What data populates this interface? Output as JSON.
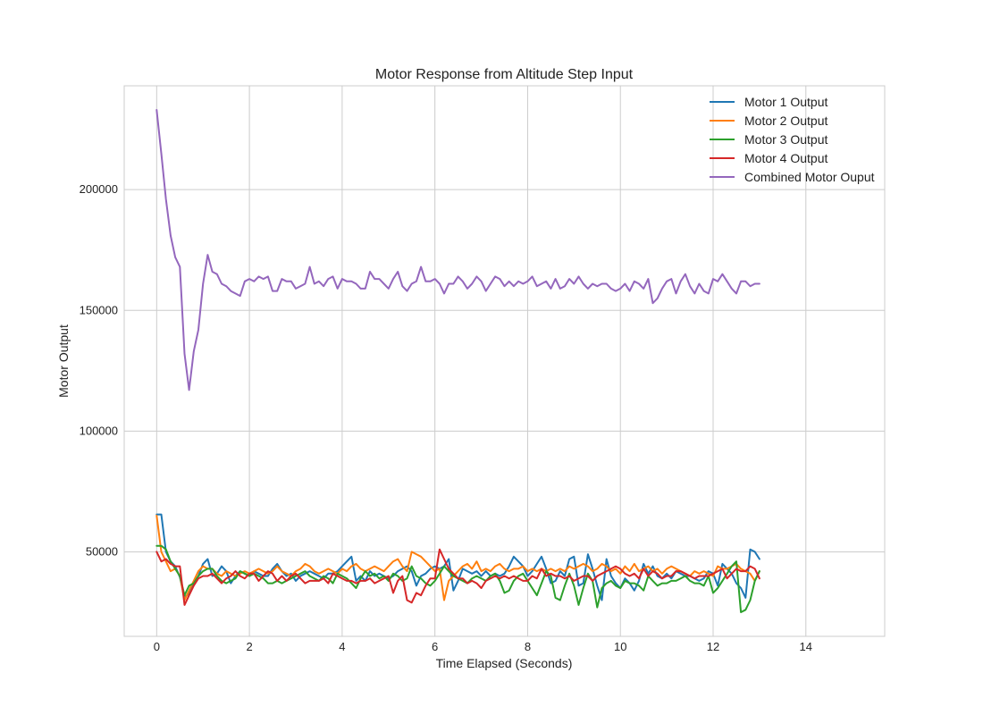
{
  "chart_data": {
    "type": "line",
    "title": "Motor Response from Altitude Step Input",
    "xlabel": "Time Elapsed (Seconds)",
    "ylabel": "Motor Output",
    "xlim": [
      -0.7,
      15.7
    ],
    "ylim": [
      15000,
      243000
    ],
    "xticks": [
      0,
      2,
      4,
      6,
      8,
      10,
      12,
      14
    ],
    "yticks": [
      50000,
      100000,
      150000,
      200000
    ],
    "grid": true,
    "legend_position": "top-right",
    "x_start": 0,
    "x_step": 0.1,
    "series": [
      {
        "name": "Motor 1 Output",
        "color": "#1f77b4",
        "values": [
          65500,
          65500,
          50000,
          46000,
          44000,
          39500,
          31000,
          33000,
          37000,
          40000,
          45000,
          47000,
          40000,
          41000,
          44000,
          42000,
          37000,
          40000,
          42000,
          41000,
          40000,
          42000,
          41000,
          40000,
          40000,
          43000,
          45000,
          42000,
          40000,
          41000,
          38000,
          40000,
          41000,
          42000,
          41000,
          40000,
          39000,
          41000,
          41000,
          42000,
          44000,
          46000,
          48000,
          38000,
          40000,
          38000,
          42000,
          40000,
          41000,
          40000,
          39000,
          40000,
          42000,
          43000,
          44000,
          42000,
          36000,
          40000,
          41000,
          43000,
          44000,
          43000,
          44000,
          47000,
          34000,
          38000,
          43000,
          42000,
          41000,
          42000,
          40000,
          42000,
          40000,
          41000,
          40000,
          41000,
          44000,
          48000,
          46000,
          44000,
          40000,
          42000,
          45000,
          48000,
          43000,
          37000,
          38000,
          42000,
          40000,
          47000,
          48000,
          36000,
          37000,
          49000,
          43000,
          36000,
          30000,
          47000,
          40000,
          37000,
          35000,
          39000,
          37000,
          34000,
          38000,
          45000,
          41000,
          44000,
          40000,
          39000,
          41000,
          39000,
          42000,
          41000,
          40000,
          40000,
          39000,
          38000,
          39000,
          42000,
          41000,
          36000,
          45000,
          43000,
          41000,
          37000,
          35000,
          31000,
          51000,
          50000,
          47000
        ]
      },
      {
        "name": "Motor 2 Output",
        "color": "#ff7f0e",
        "values": [
          65000,
          50000,
          46000,
          42000,
          43000,
          40000,
          30000,
          34000,
          38000,
          42000,
          44000,
          43000,
          43000,
          41000,
          40000,
          42000,
          41000,
          40000,
          41000,
          42000,
          41000,
          42000,
          43000,
          42000,
          41000,
          42000,
          44000,
          42000,
          41000,
          40000,
          42000,
          43000,
          45000,
          44000,
          42000,
          41000,
          42000,
          43000,
          42000,
          41000,
          43000,
          42000,
          44000,
          45000,
          43000,
          42000,
          43000,
          44000,
          43000,
          42000,
          44000,
          46000,
          47000,
          44000,
          42000,
          50000,
          49000,
          48000,
          46000,
          44000,
          42000,
          43000,
          30000,
          38000,
          40000,
          42000,
          44000,
          45000,
          43000,
          46000,
          42000,
          43000,
          42000,
          44000,
          45000,
          43000,
          42000,
          43000,
          43000,
          44000,
          42000,
          43000,
          42000,
          43000,
          42000,
          43000,
          42000,
          43000,
          42000,
          44000,
          43000,
          44000,
          45000,
          44000,
          42000,
          43000,
          45000,
          44000,
          42000,
          43000,
          41000,
          44000,
          42000,
          45000,
          42000,
          43000,
          44000,
          42000,
          43000,
          41000,
          43000,
          44000,
          43000,
          42000,
          41000,
          40000,
          42000,
          41000,
          42000,
          41000,
          40000,
          44000,
          43000,
          43000,
          44000,
          45000,
          43000,
          42000,
          41000,
          38000,
          42000
        ]
      },
      {
        "name": "Motor 3 Output",
        "color": "#2ca02c",
        "values": [
          52500,
          52500,
          51000,
          46000,
          43000,
          40000,
          32000,
          36000,
          37000,
          40000,
          42000,
          43000,
          43000,
          40000,
          38000,
          37000,
          38000,
          39000,
          42000,
          41000,
          40000,
          41000,
          40000,
          39000,
          37000,
          37000,
          38000,
          37000,
          38000,
          39000,
          40000,
          41000,
          42000,
          40000,
          39000,
          38000,
          40000,
          39000,
          37000,
          41000,
          40000,
          39000,
          37000,
          35000,
          39000,
          42000,
          40000,
          41000,
          39000,
          40000,
          38000,
          41000,
          40000,
          38000,
          39000,
          44000,
          40000,
          39000,
          37000,
          36000,
          38000,
          41000,
          44000,
          42000,
          40000,
          39000,
          38000,
          37000,
          39000,
          40000,
          39000,
          38000,
          40000,
          41000,
          38000,
          33000,
          34000,
          38000,
          40000,
          41000,
          38000,
          35000,
          32000,
          37000,
          42000,
          40000,
          31000,
          30000,
          36000,
          41000,
          36000,
          28000,
          35000,
          41000,
          38000,
          27000,
          35000,
          37000,
          38000,
          36000,
          35000,
          38000,
          37000,
          37000,
          36000,
          34000,
          40000,
          38000,
          36000,
          37000,
          37000,
          38000,
          38000,
          39000,
          40000,
          38000,
          37000,
          37000,
          36000,
          40000,
          33000,
          35000,
          38000,
          41000,
          44000,
          46000,
          25000,
          26000,
          30000,
          38000,
          42000
        ]
      },
      {
        "name": "Motor 4 Output",
        "color": "#d62728",
        "values": [
          50000,
          46000,
          47000,
          45000,
          44000,
          44000,
          28000,
          32000,
          36000,
          39000,
          40000,
          40000,
          41000,
          39000,
          37000,
          39000,
          40000,
          42000,
          40000,
          39000,
          41000,
          41000,
          38000,
          40000,
          42000,
          41000,
          38000,
          40000,
          38000,
          40000,
          41000,
          39000,
          37000,
          38000,
          38000,
          38000,
          39000,
          37000,
          41000,
          40000,
          39000,
          38000,
          38000,
          37000,
          38000,
          38000,
          39000,
          37000,
          38000,
          39000,
          40000,
          33000,
          38000,
          40000,
          30000,
          29000,
          33000,
          32000,
          36000,
          39000,
          39000,
          51000,
          47000,
          43000,
          41000,
          39000,
          39000,
          37000,
          38000,
          37000,
          35000,
          38000,
          39000,
          40000,
          39000,
          40000,
          39000,
          40000,
          39000,
          38000,
          38000,
          40000,
          39000,
          43000,
          40000,
          41000,
          40000,
          40000,
          39000,
          40000,
          38000,
          39000,
          40000,
          40000,
          38000,
          40000,
          41000,
          42000,
          43000,
          44000,
          43000,
          41000,
          40000,
          41000,
          39000,
          43000,
          40000,
          42000,
          41000,
          39000,
          40000,
          40000,
          42000,
          42000,
          41000,
          40000,
          39000,
          40000,
          40000,
          40000,
          41000,
          42000,
          43000,
          39000,
          41000,
          43000,
          42000,
          42000,
          44000,
          43000,
          39000
        ]
      },
      {
        "name": "Combined Motor Ouput",
        "color": "#9467bd",
        "values": [
          233000,
          215000,
          196000,
          181000,
          172000,
          168000,
          132000,
          117000,
          133000,
          142000,
          161000,
          173000,
          166000,
          165000,
          161000,
          160000,
          158000,
          157000,
          156000,
          162000,
          163000,
          162000,
          164000,
          163000,
          164000,
          158000,
          158000,
          163000,
          162000,
          162000,
          159000,
          160000,
          161000,
          168000,
          161000,
          162000,
          160000,
          163000,
          164000,
          159000,
          163000,
          162000,
          162000,
          161000,
          159000,
          159000,
          166000,
          163000,
          163000,
          161000,
          159000,
          163000,
          166000,
          160000,
          158000,
          161000,
          162000,
          168000,
          162000,
          162000,
          163000,
          161000,
          157000,
          161000,
          161000,
          164000,
          162000,
          159000,
          161000,
          164000,
          162000,
          158000,
          161000,
          164000,
          163000,
          160000,
          162000,
          160000,
          162000,
          161000,
          162000,
          164000,
          160000,
          161000,
          162000,
          159000,
          163000,
          159000,
          160000,
          163000,
          161000,
          164000,
          161000,
          159000,
          161000,
          160000,
          161000,
          161000,
          159000,
          158000,
          159000,
          161000,
          158000,
          162000,
          161000,
          159000,
          163000,
          153000,
          155000,
          159000,
          162000,
          163000,
          157000,
          162000,
          165000,
          160000,
          157000,
          161000,
          158000,
          157000,
          163000,
          162000,
          165000,
          162000,
          159000,
          157000,
          162000,
          162000,
          160000,
          161000,
          161000
        ]
      }
    ]
  }
}
